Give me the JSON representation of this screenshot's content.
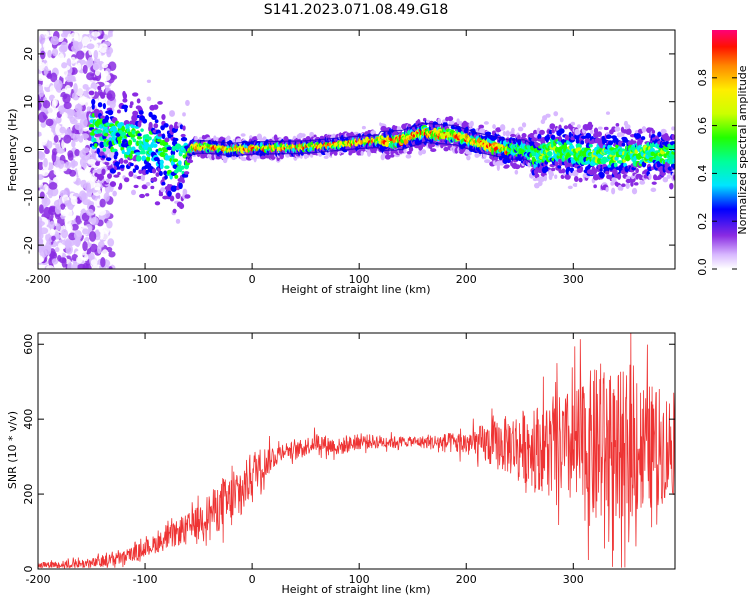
{
  "title": "S141.2023.071.08.49.G18",
  "chart_data": [
    {
      "type": "heatmap",
      "xlabel": "Height of straight line (km)",
      "ylabel": "Frequency (Hz)",
      "xlim": [
        -200,
        395
      ],
      "ylim": [
        -25,
        25
      ],
      "xticks": [
        -200,
        -100,
        0,
        100,
        200,
        300
      ],
      "yticks": [
        -20,
        -10,
        0,
        10,
        20
      ],
      "colorbar": {
        "label": "Normalized spectral amplitude",
        "range": [
          0.0,
          1.0
        ],
        "ticks": [
          0.0,
          0.2,
          0.4,
          0.6,
          0.8
        ],
        "tick_labels": [
          "0.0",
          "0.2",
          "0.4",
          "0.6",
          "0.8"
        ],
        "colormap": "rainbow"
      },
      "centerline": [
        {
          "x": -150,
          "y": 4
        },
        {
          "x": -130,
          "y": 2
        },
        {
          "x": -110,
          "y": 2
        },
        {
          "x": -90,
          "y": 0
        },
        {
          "x": -75,
          "y": -3
        },
        {
          "x": -65,
          "y": -2
        },
        {
          "x": -55,
          "y": 0.5
        },
        {
          "x": -40,
          "y": 0.5
        },
        {
          "x": -20,
          "y": 0
        },
        {
          "x": 0,
          "y": 0.3
        },
        {
          "x": 50,
          "y": 0.5
        },
        {
          "x": 100,
          "y": 1.5
        },
        {
          "x": 140,
          "y": 2
        },
        {
          "x": 160,
          "y": 3.5
        },
        {
          "x": 190,
          "y": 3
        },
        {
          "x": 210,
          "y": 1.5
        },
        {
          "x": 240,
          "y": 0
        },
        {
          "x": 255,
          "y": 0
        },
        {
          "x": 265,
          "y": -1.5
        },
        {
          "x": 280,
          "y": 0
        },
        {
          "x": 300,
          "y": -0.5
        },
        {
          "x": 330,
          "y": -1.5
        },
        {
          "x": 360,
          "y": -1
        },
        {
          "x": 395,
          "y": -1
        }
      ]
    },
    {
      "type": "line",
      "xlabel": "Height of straight line (km)",
      "ylabel": "SNR (10 * v/v)",
      "xlim": [
        -200,
        395
      ],
      "ylim": [
        0,
        630
      ],
      "xticks": [
        -200,
        -100,
        0,
        100,
        200,
        300
      ],
      "yticks": [
        0,
        200,
        400,
        600
      ],
      "color": "#ee3333",
      "mean": [
        {
          "x": -200,
          "y": 10
        },
        {
          "x": -150,
          "y": 15
        },
        {
          "x": -120,
          "y": 30
        },
        {
          "x": -100,
          "y": 55
        },
        {
          "x": -80,
          "y": 80
        },
        {
          "x": -60,
          "y": 110
        },
        {
          "x": -40,
          "y": 150
        },
        {
          "x": -20,
          "y": 180
        },
        {
          "x": -10,
          "y": 200
        },
        {
          "x": 0,
          "y": 260
        },
        {
          "x": 10,
          "y": 280
        },
        {
          "x": 20,
          "y": 300
        },
        {
          "x": 30,
          "y": 320
        },
        {
          "x": 40,
          "y": 315
        },
        {
          "x": 60,
          "y": 340
        },
        {
          "x": 80,
          "y": 325
        },
        {
          "x": 100,
          "y": 340
        },
        {
          "x": 150,
          "y": 340
        },
        {
          "x": 200,
          "y": 335
        },
        {
          "x": 250,
          "y": 330
        },
        {
          "x": 300,
          "y": 320
        },
        {
          "x": 340,
          "y": 320
        },
        {
          "x": 395,
          "y": 330
        }
      ],
      "spread": [
        {
          "x": -200,
          "y": 8
        },
        {
          "x": -100,
          "y": 25
        },
        {
          "x": -50,
          "y": 50
        },
        {
          "x": -20,
          "y": 90
        },
        {
          "x": 0,
          "y": 70
        },
        {
          "x": 30,
          "y": 25
        },
        {
          "x": 60,
          "y": 30
        },
        {
          "x": 100,
          "y": 25
        },
        {
          "x": 150,
          "y": 15
        },
        {
          "x": 200,
          "y": 40
        },
        {
          "x": 250,
          "y": 110
        },
        {
          "x": 290,
          "y": 170
        },
        {
          "x": 320,
          "y": 260
        },
        {
          "x": 350,
          "y": 240
        },
        {
          "x": 395,
          "y": 160
        }
      ]
    }
  ]
}
